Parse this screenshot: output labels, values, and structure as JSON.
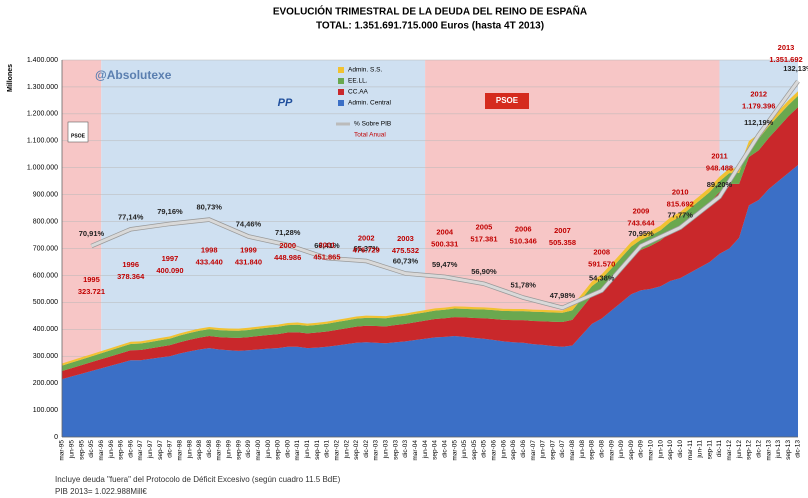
{
  "chart_data": {
    "type": "stacked_area",
    "title": "EVOLUCIÓN TRIMESTRAL DE LA DEUDA DEL REINO DE ESPAÑA",
    "subtitle": "TOTAL: 1.351.691.715.000 Euros (hasta 4T 2013)",
    "y_label": "Millones",
    "watermark": "@Absolutexe",
    "logos": [
      "PSOE",
      "PP",
      "PSOE"
    ],
    "footnotes": [
      "Incluye deuda \"fuera\" del Protocolo de Déficit Excesivo (según cuadro 11.5 BdE)",
      "PIB 2013= 1.022.988Mill€"
    ],
    "categories": [
      "mar-95",
      "jun-95",
      "sep-95",
      "dic-95",
      "mar-96",
      "jun-96",
      "sep-96",
      "dic-96",
      "mar-97",
      "jun-97",
      "sep-97",
      "dic-97",
      "mar-98",
      "jun-98",
      "sep-98",
      "dic-98",
      "mar-99",
      "jun-99",
      "sep-99",
      "dic-99",
      "mar-00",
      "jun-00",
      "sep-00",
      "dic-00",
      "mar-01",
      "jun-01",
      "sep-01",
      "dic-01",
      "mar-02",
      "jun-02",
      "sep-02",
      "dic-02",
      "mar-03",
      "jun-03",
      "sep-03",
      "dic-03",
      "mar-04",
      "jun-04",
      "sep-04",
      "dic-04",
      "mar-05",
      "jun-05",
      "sep-05",
      "dic-05",
      "mar-06",
      "jun-06",
      "sep-06",
      "dic-06",
      "mar-07",
      "jun-07",
      "sep-07",
      "dic-07",
      "mar-08",
      "jun-08",
      "sep-08",
      "dic-08",
      "mar-09",
      "jun-09",
      "sep-09",
      "dic-09",
      "mar-10",
      "jun-10",
      "sep-10",
      "dic-10",
      "mar-11",
      "jun-11",
      "sep-11",
      "dic-11",
      "mar-12",
      "jun-12",
      "sep-12",
      "dic-12",
      "mar-13",
      "jun-13",
      "sep-13",
      "dic-13"
    ],
    "series": [
      {
        "name": "Admin. Central",
        "color": "#3b6fc6",
        "values": [
          215000,
          225000,
          235000,
          245000,
          255000,
          265000,
          275000,
          285000,
          285000,
          290000,
          295000,
          300000,
          310000,
          318000,
          325000,
          330000,
          325000,
          322000,
          320000,
          322000,
          325000,
          328000,
          330000,
          335000,
          335000,
          330000,
          332000,
          335000,
          340000,
          345000,
          350000,
          352000,
          350000,
          348000,
          352000,
          355000,
          360000,
          365000,
          370000,
          372000,
          375000,
          372000,
          368000,
          365000,
          360000,
          355000,
          352000,
          350000,
          345000,
          342000,
          338000,
          335000,
          340000,
          380000,
          420000,
          440000,
          470000,
          500000,
          530000,
          545000,
          550000,
          560000,
          580000,
          590000,
          610000,
          630000,
          650000,
          680000,
          700000,
          740000,
          860000,
          880000,
          920000,
          950000,
          980000,
          1010000
        ]
      },
      {
        "name": "CC.AA",
        "color": "#c9282b",
        "values": [
          30000,
          31000,
          32000,
          33000,
          34000,
          35000,
          36000,
          37000,
          38000,
          39000,
          40000,
          41000,
          42000,
          43000,
          44000,
          45000,
          46000,
          47000,
          48000,
          49000,
          50000,
          51000,
          52000,
          53000,
          54000,
          55000,
          56000,
          57000,
          58000,
          59000,
          60000,
          61000,
          62000,
          63000,
          64000,
          65000,
          66000,
          67000,
          68000,
          69000,
          70000,
          72000,
          74000,
          76000,
          78000,
          80000,
          82000,
          84000,
          86000,
          88000,
          90000,
          92000,
          95000,
          100000,
          105000,
          112000,
          120000,
          130000,
          140000,
          150000,
          160000,
          170000,
          180000,
          190000,
          200000,
          210000,
          220000,
          230000,
          240000,
          200000,
          180000,
          185000,
          190000,
          200000,
          210000,
          215000
        ]
      },
      {
        "name": "EE.LL.",
        "color": "#6aa84f",
        "values": [
          20000,
          20500,
          21000,
          21500,
          22000,
          22500,
          23000,
          23500,
          24000,
          24000,
          24500,
          24500,
          25000,
          25000,
          25500,
          25500,
          26000,
          26000,
          26500,
          26500,
          27000,
          27000,
          27500,
          27500,
          28000,
          28000,
          28500,
          28500,
          29000,
          29000,
          29500,
          29500,
          30000,
          30000,
          30500,
          30500,
          31000,
          31000,
          31500,
          31500,
          32000,
          32000,
          32500,
          32500,
          33000,
          33000,
          33500,
          33500,
          34000,
          34000,
          34500,
          34500,
          35000,
          35000,
          35500,
          35500,
          36000,
          36500,
          37000,
          37500,
          38000,
          38000,
          38500,
          38500,
          39000,
          39000,
          39500,
          39500,
          40000,
          41000,
          42000,
          43000,
          43000,
          43000,
          42000,
          42000
        ]
      },
      {
        "name": "Admin. S.S.",
        "color": "#f1c232",
        "values": [
          8000,
          8000,
          8000,
          8000,
          8000,
          8000,
          8000,
          8000,
          8000,
          8000,
          8000,
          8000,
          8000,
          8000,
          8000,
          8000,
          8000,
          8000,
          8000,
          8000,
          8000,
          8000,
          8000,
          8000,
          8000,
          8000,
          8000,
          8000,
          8000,
          8000,
          8000,
          8000,
          8000,
          8000,
          8000,
          8000,
          8000,
          8000,
          8000,
          8000,
          8000,
          8000,
          8000,
          8000,
          8000,
          8000,
          8000,
          8000,
          8000,
          8000,
          8000,
          8000,
          17000,
          17000,
          17000,
          17000,
          17000,
          17000,
          17000,
          17000,
          17000,
          17000,
          17000,
          17000,
          17000,
          17000,
          17000,
          17000,
          17000,
          17000,
          17000,
          17000,
          17000,
          17000,
          17000,
          17000
        ]
      }
    ],
    "pib_line": {
      "name": "% Sobre PIB",
      "axis": "y2",
      "color": "#d9d9d9",
      "x": [
        1995,
        1996,
        1997,
        1998,
        1999,
        2000,
        2001,
        2002,
        2003,
        2004,
        2005,
        2006,
        2007,
        2008,
        2009,
        2010,
        2011,
        2012,
        2013
      ],
      "values": [
        70.91,
        77.14,
        79.16,
        80.73,
        74.46,
        71.28,
        66.41,
        65.37,
        60.73,
        59.47,
        56.9,
        51.78,
        47.98,
        54.38,
        70.95,
        77.77,
        89.2,
        112.19,
        132.13
      ],
      "value_labels": [
        "70,91%",
        "77,14%",
        "79,16%",
        "80,73%",
        "74,46%",
        "71,28%",
        "66,41%",
        "65,37%",
        "60,73%",
        "59,47%",
        "56,90%",
        "51,78%",
        "47,98%",
        "54,38%",
        "70,95%",
        "77,77%",
        "89,20%",
        "112,19%",
        "132,13%"
      ]
    },
    "annual_totals": {
      "name": "Total Anual",
      "color": "#c00000",
      "x": [
        1995,
        1996,
        1997,
        1998,
        1999,
        2000,
        2001,
        2002,
        2003,
        2004,
        2005,
        2006,
        2007,
        2008,
        2009,
        2010,
        2011,
        2012,
        2013
      ],
      "values": [
        323721,
        378364,
        400090,
        433440,
        431840,
        448986,
        451865,
        476729,
        475532,
        500331,
        517381,
        510346,
        505358,
        591570,
        743644,
        815692,
        948488,
        1179396,
        1351692
      ],
      "value_labels": [
        "323.721",
        "378.364",
        "400.090",
        "433.440",
        "431.840",
        "448.986",
        "451.865",
        "476.729",
        "475.532",
        "500.331",
        "517.381",
        "510.346",
        "505.358",
        "591.570",
        "743.644",
        "815.692",
        "948.488",
        "1.179.396",
        "1.351.692"
      ]
    },
    "ylim": [
      0,
      1400000
    ],
    "yticks": [
      0,
      {
        "value": 100000,
        "label": "100.000"
      },
      {
        "value": 200000,
        "label": "200.000"
      },
      {
        "value": 300000,
        "label": "300.000"
      },
      {
        "value": 400000,
        "label": "400.000"
      },
      {
        "value": 500000,
        "label": "500.000"
      },
      {
        "value": 600000,
        "label": "600.000"
      },
      {
        "value": 700000,
        "label": "700.000"
      },
      {
        "value": 800000,
        "label": "800.000"
      },
      {
        "value": 900000,
        "label": "900.000"
      },
      {
        "value": 1000000,
        "label": "1.000.000"
      },
      {
        "value": 1100000,
        "label": "1.100.000"
      },
      {
        "value": 1200000,
        "label": "1.200.000"
      },
      {
        "value": 1300000,
        "label": "1.300.000"
      },
      {
        "value": 1400000,
        "label": "1.400.000"
      }
    ],
    "y2lim": [
      0,
      140
    ],
    "grid": true
  }
}
